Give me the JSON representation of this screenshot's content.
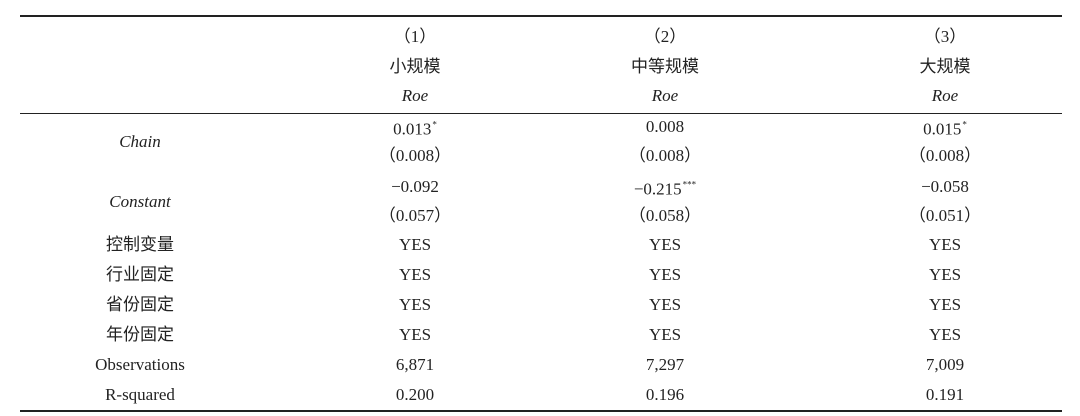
{
  "table": {
    "columns": [
      {
        "number": "（1）",
        "name": "小规模",
        "dependent": "Roe"
      },
      {
        "number": "（2）",
        "name": "中等规模",
        "dependent": "Roe"
      },
      {
        "number": "（3）",
        "name": "大规模",
        "dependent": "Roe"
      }
    ],
    "coefficient_rows": [
      {
        "label": "Chain",
        "coefficients": [
          {
            "value": "0.013",
            "stars": "*"
          },
          {
            "value": "0.008"
          },
          {
            "value": "0.015",
            "stars": "*"
          }
        ],
        "standard_errors": [
          "（0.008）",
          "（0.008）",
          "（0.008）"
        ]
      },
      {
        "label": "Constant",
        "coefficients": [
          {
            "value": "−0.092"
          },
          {
            "value": "−0.215",
            "stars": "***"
          },
          {
            "value": "−0.058"
          }
        ],
        "standard_errors": [
          "（0.057）",
          "（0.058）",
          "（0.051）"
        ]
      }
    ],
    "rows": [
      {
        "label": "控制变量",
        "values": [
          "YES",
          "YES",
          "YES"
        ]
      },
      {
        "label": "行业固定",
        "values": [
          "YES",
          "YES",
          "YES"
        ]
      },
      {
        "label": "省份固定",
        "values": [
          "YES",
          "YES",
          "YES"
        ]
      },
      {
        "label": "年份固定",
        "values": [
          "YES",
          "YES",
          "YES"
        ]
      },
      {
        "label": "Observations",
        "values": [
          "6,871",
          "7,297",
          "7,009"
        ]
      },
      {
        "label": "R-squared",
        "values": [
          "0.200",
          "0.196",
          "0.191"
        ]
      }
    ]
  }
}
